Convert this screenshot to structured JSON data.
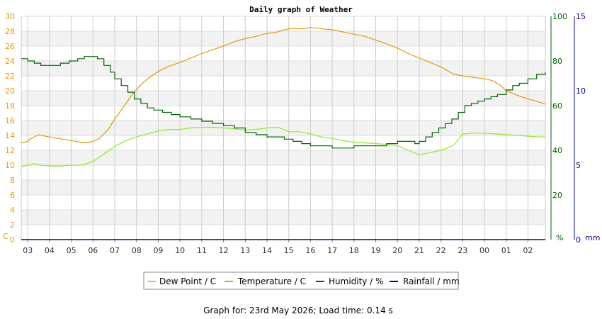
{
  "chart_data": {
    "type": "line",
    "title": "Daily graph of Weather",
    "x_ticks": [
      "03",
      "04",
      "05",
      "06",
      "07",
      "08",
      "09",
      "10",
      "11",
      "12",
      "13",
      "14",
      "15",
      "16",
      "17",
      "18",
      "19",
      "20",
      "21",
      "22",
      "23",
      "00",
      "01",
      "02"
    ],
    "left_axis": {
      "unit": "C",
      "ticks": [
        "0",
        "2",
        "4",
        "6",
        "8",
        "10",
        "12",
        "14",
        "16",
        "18",
        "20",
        "22",
        "24",
        "26",
        "28",
        "30"
      ],
      "ylim": [
        0,
        30
      ],
      "color": "#e69a00"
    },
    "right_axis_1": {
      "unit": "%",
      "ticks": [
        "20",
        "40",
        "60",
        "80",
        "100"
      ],
      "ylim": [
        0,
        100
      ],
      "color": "#006400"
    },
    "right_axis_2": {
      "unit": "mm",
      "ticks": [
        "0",
        "5",
        "10",
        "15"
      ],
      "ylim": [
        0,
        15
      ],
      "color": "#0000aa"
    },
    "grid": true,
    "legend_position": "bottom",
    "series": [
      {
        "name": "Dew Point / C",
        "axis": "left",
        "color": "#88ee22",
        "x": [
          2.7,
          3.0,
          3.3,
          3.6,
          4.0,
          4.5,
          5.0,
          5.5,
          6.0,
          6.5,
          7.0,
          7.5,
          8.0,
          8.5,
          9.0,
          9.5,
          10.0,
          10.5,
          11.0,
          11.5,
          12.0,
          12.5,
          13.0,
          13.5,
          14.0,
          14.5,
          15.0,
          15.5,
          16.0,
          16.5,
          17.0,
          17.5,
          18.0,
          18.5,
          19.0,
          19.5,
          20.0,
          20.5,
          21.0,
          21.5,
          22.0,
          22.3,
          22.6,
          23.0,
          23.5,
          24.0,
          24.5,
          25.0,
          25.5,
          26.0,
          26.5,
          26.8
        ],
        "y": [
          9.8,
          10.0,
          10.2,
          10.0,
          9.9,
          9.9,
          10.0,
          10.0,
          10.5,
          11.5,
          12.5,
          13.3,
          13.8,
          14.2,
          14.6,
          14.8,
          14.8,
          15.0,
          15.1,
          15.1,
          15.0,
          14.9,
          14.7,
          14.8,
          15.0,
          15.1,
          14.5,
          14.5,
          14.2,
          13.8,
          13.6,
          13.3,
          13.1,
          13.0,
          12.9,
          12.8,
          12.6,
          12.0,
          11.4,
          11.7,
          12.0,
          12.3,
          12.7,
          14.2,
          14.3,
          14.3,
          14.2,
          14.1,
          14.0,
          13.9,
          13.8,
          13.8
        ]
      },
      {
        "name": "Temperature / C",
        "axis": "left",
        "color": "#e69a00",
        "x": [
          2.7,
          3.0,
          3.1,
          3.3,
          3.5,
          3.8,
          4.2,
          4.6,
          5.0,
          5.4,
          5.7,
          6.0,
          6.3,
          6.7,
          7.0,
          7.4,
          7.8,
          8.2,
          8.6,
          9.0,
          9.5,
          10.0,
          10.5,
          11.0,
          11.5,
          12.0,
          12.5,
          13.0,
          13.5,
          14.0,
          14.5,
          14.8,
          15.2,
          15.6,
          16.0,
          16.3,
          16.6,
          17.0,
          17.5,
          18.0,
          18.5,
          19.0,
          19.5,
          20.0,
          20.5,
          21.0,
          21.5,
          22.0,
          22.3,
          22.6,
          23.0,
          23.5,
          24.0,
          24.2,
          24.4,
          24.7,
          25.0,
          25.5,
          26.0,
          26.5,
          26.8
        ],
        "y": [
          13.0,
          13.2,
          13.5,
          13.8,
          14.1,
          13.9,
          13.7,
          13.5,
          13.3,
          13.1,
          13.0,
          13.2,
          13.6,
          14.8,
          16.2,
          17.8,
          19.5,
          20.8,
          21.8,
          22.6,
          23.3,
          23.8,
          24.4,
          25.0,
          25.5,
          26.0,
          26.6,
          27.0,
          27.3,
          27.7,
          27.9,
          28.2,
          28.4,
          28.3,
          28.5,
          28.4,
          28.3,
          28.2,
          27.9,
          27.6,
          27.3,
          26.8,
          26.3,
          25.7,
          25.0,
          24.4,
          23.8,
          23.2,
          22.7,
          22.2,
          22.0,
          21.8,
          21.6,
          21.5,
          21.3,
          20.8,
          20.0,
          19.4,
          18.9,
          18.5,
          18.2
        ]
      },
      {
        "name": "Humidity / %",
        "axis": "right1",
        "color": "#006400",
        "x": [
          2.7,
          3.0,
          3.3,
          3.6,
          4.0,
          4.5,
          4.9,
          5.3,
          5.6,
          5.9,
          6.2,
          6.5,
          6.8,
          7.0,
          7.3,
          7.6,
          7.9,
          8.2,
          8.5,
          8.8,
          9.2,
          9.6,
          10.0,
          10.5,
          11.0,
          11.5,
          12.0,
          12.5,
          13.0,
          13.5,
          14.0,
          14.5,
          14.8,
          15.2,
          15.6,
          16.0,
          16.5,
          17.0,
          17.5,
          18.0,
          18.5,
          19.0,
          19.5,
          20.0,
          20.5,
          20.8,
          21.0,
          21.3,
          21.6,
          21.9,
          22.2,
          22.5,
          22.8,
          23.1,
          23.4,
          23.7,
          24.0,
          24.3,
          24.6,
          25.0,
          25.3,
          25.6,
          26.0,
          26.4,
          26.8
        ],
        "y": [
          81,
          80,
          79,
          78,
          78,
          79,
          80,
          81,
          82,
          82,
          81,
          78,
          75,
          72,
          69,
          66,
          63,
          61,
          59,
          58,
          57,
          56,
          55,
          54,
          53,
          52,
          51,
          50,
          48,
          47,
          46,
          46,
          45,
          44,
          43,
          42,
          42,
          41,
          41,
          42,
          42,
          42,
          43,
          44,
          44,
          43,
          44,
          46,
          48,
          50,
          52,
          54,
          57,
          60,
          61,
          62,
          63,
          64,
          65,
          67,
          69,
          70,
          72,
          74,
          75
        ]
      },
      {
        "name": "Rainfall / mm",
        "axis": "right2",
        "color": "#0000aa",
        "x": [
          2.7,
          26.8
        ],
        "y": [
          0,
          0
        ]
      }
    ]
  },
  "footer": {
    "text": "Graph for: 23rd May 2026; Load time: 0.14 s"
  }
}
